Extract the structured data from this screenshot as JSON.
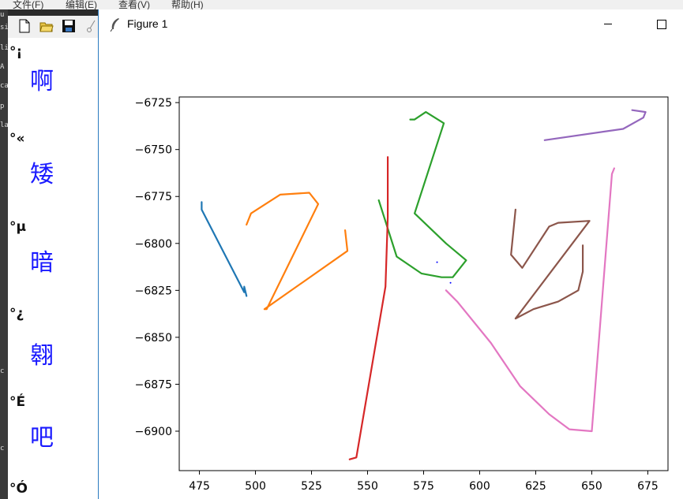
{
  "background_app": {
    "menu": [
      "文件(F)",
      "编辑(E)",
      "查看(V)",
      "帮助(H)"
    ],
    "left_strip_text": [
      "u",
      "si",
      "li",
      "A",
      "ca",
      "p",
      "la",
      "c",
      "c"
    ],
    "list_items": [
      {
        "label": "°¡",
        "glyph": "啊"
      },
      {
        "label": "°«",
        "glyph": "矮"
      },
      {
        "label": "°µ",
        "glyph": "暗"
      },
      {
        "label": "°¿",
        "glyph": "翱"
      },
      {
        "label": "°É",
        "glyph": "吧"
      },
      {
        "label": "°Ó",
        "glyph": ""
      }
    ]
  },
  "window": {
    "title": "Figure 1",
    "icons": {
      "app": "feather-icon",
      "minimize": "minimize-icon",
      "maximize": "maximize-icon"
    }
  },
  "chart_data": {
    "type": "line",
    "title": "",
    "xlabel": "",
    "ylabel": "",
    "xlim": [
      466,
      684
    ],
    "ylim": [
      -6921,
      -6722
    ],
    "xticks": [
      475,
      500,
      525,
      550,
      575,
      600,
      625,
      650,
      675
    ],
    "yticks": [
      -6725,
      -6750,
      -6775,
      -6800,
      -6825,
      -6850,
      -6875,
      -6900
    ],
    "grid": false,
    "legend": "none",
    "series": [
      {
        "color": "#1f77b4",
        "points": [
          [
            476,
            -6778
          ],
          [
            476,
            -6782
          ],
          [
            495,
            -6826
          ],
          [
            495,
            -6823
          ],
          [
            496,
            -6828
          ]
        ]
      },
      {
        "color": "#ff7f0e",
        "points": [
          [
            496,
            -6790
          ],
          [
            498,
            -6784
          ],
          [
            511,
            -6774
          ],
          [
            524,
            -6773
          ],
          [
            528,
            -6779
          ],
          [
            505,
            -6835
          ],
          [
            504,
            -6835
          ],
          [
            541,
            -6804
          ],
          [
            540,
            -6793
          ]
        ]
      },
      {
        "color": "#2ca02c",
        "points": [
          [
            555,
            -6777
          ],
          [
            563,
            -6807
          ],
          [
            574,
            -6816
          ],
          [
            583,
            -6818
          ],
          [
            588,
            -6818
          ],
          [
            594,
            -6809
          ],
          [
            585,
            -6800
          ],
          [
            571,
            -6784
          ],
          [
            584,
            -6736
          ],
          [
            576,
            -6730
          ],
          [
            571,
            -6734
          ],
          [
            569,
            -6734
          ]
        ]
      },
      {
        "color": "#d62728",
        "points": [
          [
            559,
            -6754
          ],
          [
            559,
            -6786
          ],
          [
            558,
            -6823
          ],
          [
            545,
            -6914
          ],
          [
            542,
            -6915
          ]
        ]
      },
      {
        "color": "#9467bd",
        "points": [
          [
            629,
            -6745
          ],
          [
            664,
            -6739
          ],
          [
            673,
            -6733
          ],
          [
            674,
            -6730
          ],
          [
            668,
            -6729
          ]
        ]
      },
      {
        "color": "#8c564b",
        "points": [
          [
            616,
            -6782
          ],
          [
            614,
            -6806
          ],
          [
            619,
            -6813
          ],
          [
            631,
            -6791
          ],
          [
            635,
            -6789
          ],
          [
            649,
            -6788
          ],
          [
            616,
            -6840
          ],
          [
            624,
            -6835
          ],
          [
            635,
            -6831
          ],
          [
            644,
            -6825
          ],
          [
            646,
            -6815
          ],
          [
            646,
            -6801
          ]
        ]
      },
      {
        "color": "#e377c2",
        "points": [
          [
            585,
            -6825
          ],
          [
            590,
            -6831
          ],
          [
            605,
            -6853
          ],
          [
            618,
            -6876
          ],
          [
            631,
            -6891
          ],
          [
            640,
            -6899
          ],
          [
            650,
            -6900
          ],
          [
            659,
            -6763
          ],
          [
            660,
            -6760
          ]
        ]
      }
    ],
    "dots": [
      {
        "color": "#0000ff",
        "x": 581,
        "y": -6810
      },
      {
        "color": "#0000ff",
        "x": 587,
        "y": -6821
      }
    ]
  }
}
